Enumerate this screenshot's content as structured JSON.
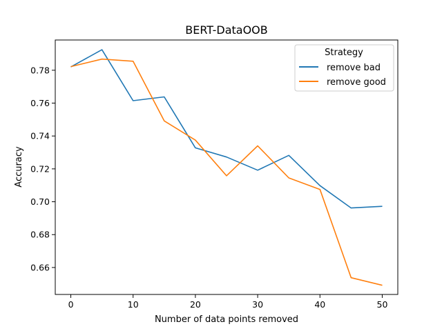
{
  "chart_data": {
    "type": "line",
    "title": "BERT-DataOOB",
    "xlabel": "Number of data points removed",
    "ylabel": "Accuracy",
    "xlim": [
      -2.5,
      52.5
    ],
    "ylim": [
      0.6436,
      0.7984
    ],
    "xticks": [
      0,
      10,
      20,
      30,
      40,
      50
    ],
    "yticks": [
      0.66,
      0.68,
      0.7,
      0.72,
      0.74,
      0.76,
      0.78
    ],
    "ytick_labels": [
      "0.66",
      "0.68",
      "0.70",
      "0.72",
      "0.74",
      "0.76",
      "0.78"
    ],
    "x": [
      0,
      5,
      10,
      15,
      20,
      25,
      30,
      35,
      40,
      45,
      50
    ],
    "series": [
      {
        "name": "remove bad",
        "color": "#1f77b4",
        "values": [
          0.782,
          0.7925,
          0.7615,
          0.7638,
          0.7328,
          0.7272,
          0.7192,
          0.7282,
          0.7098,
          0.6962,
          0.6972
        ]
      },
      {
        "name": "remove good",
        "color": "#ff7f0e",
        "values": [
          0.7822,
          0.7868,
          0.7855,
          0.7492,
          0.7375,
          0.7158,
          0.734,
          0.7145,
          0.7075,
          0.6538,
          0.6492
        ]
      }
    ],
    "legend": {
      "title": "Strategy",
      "position": "upper right"
    },
    "grid": false
  }
}
